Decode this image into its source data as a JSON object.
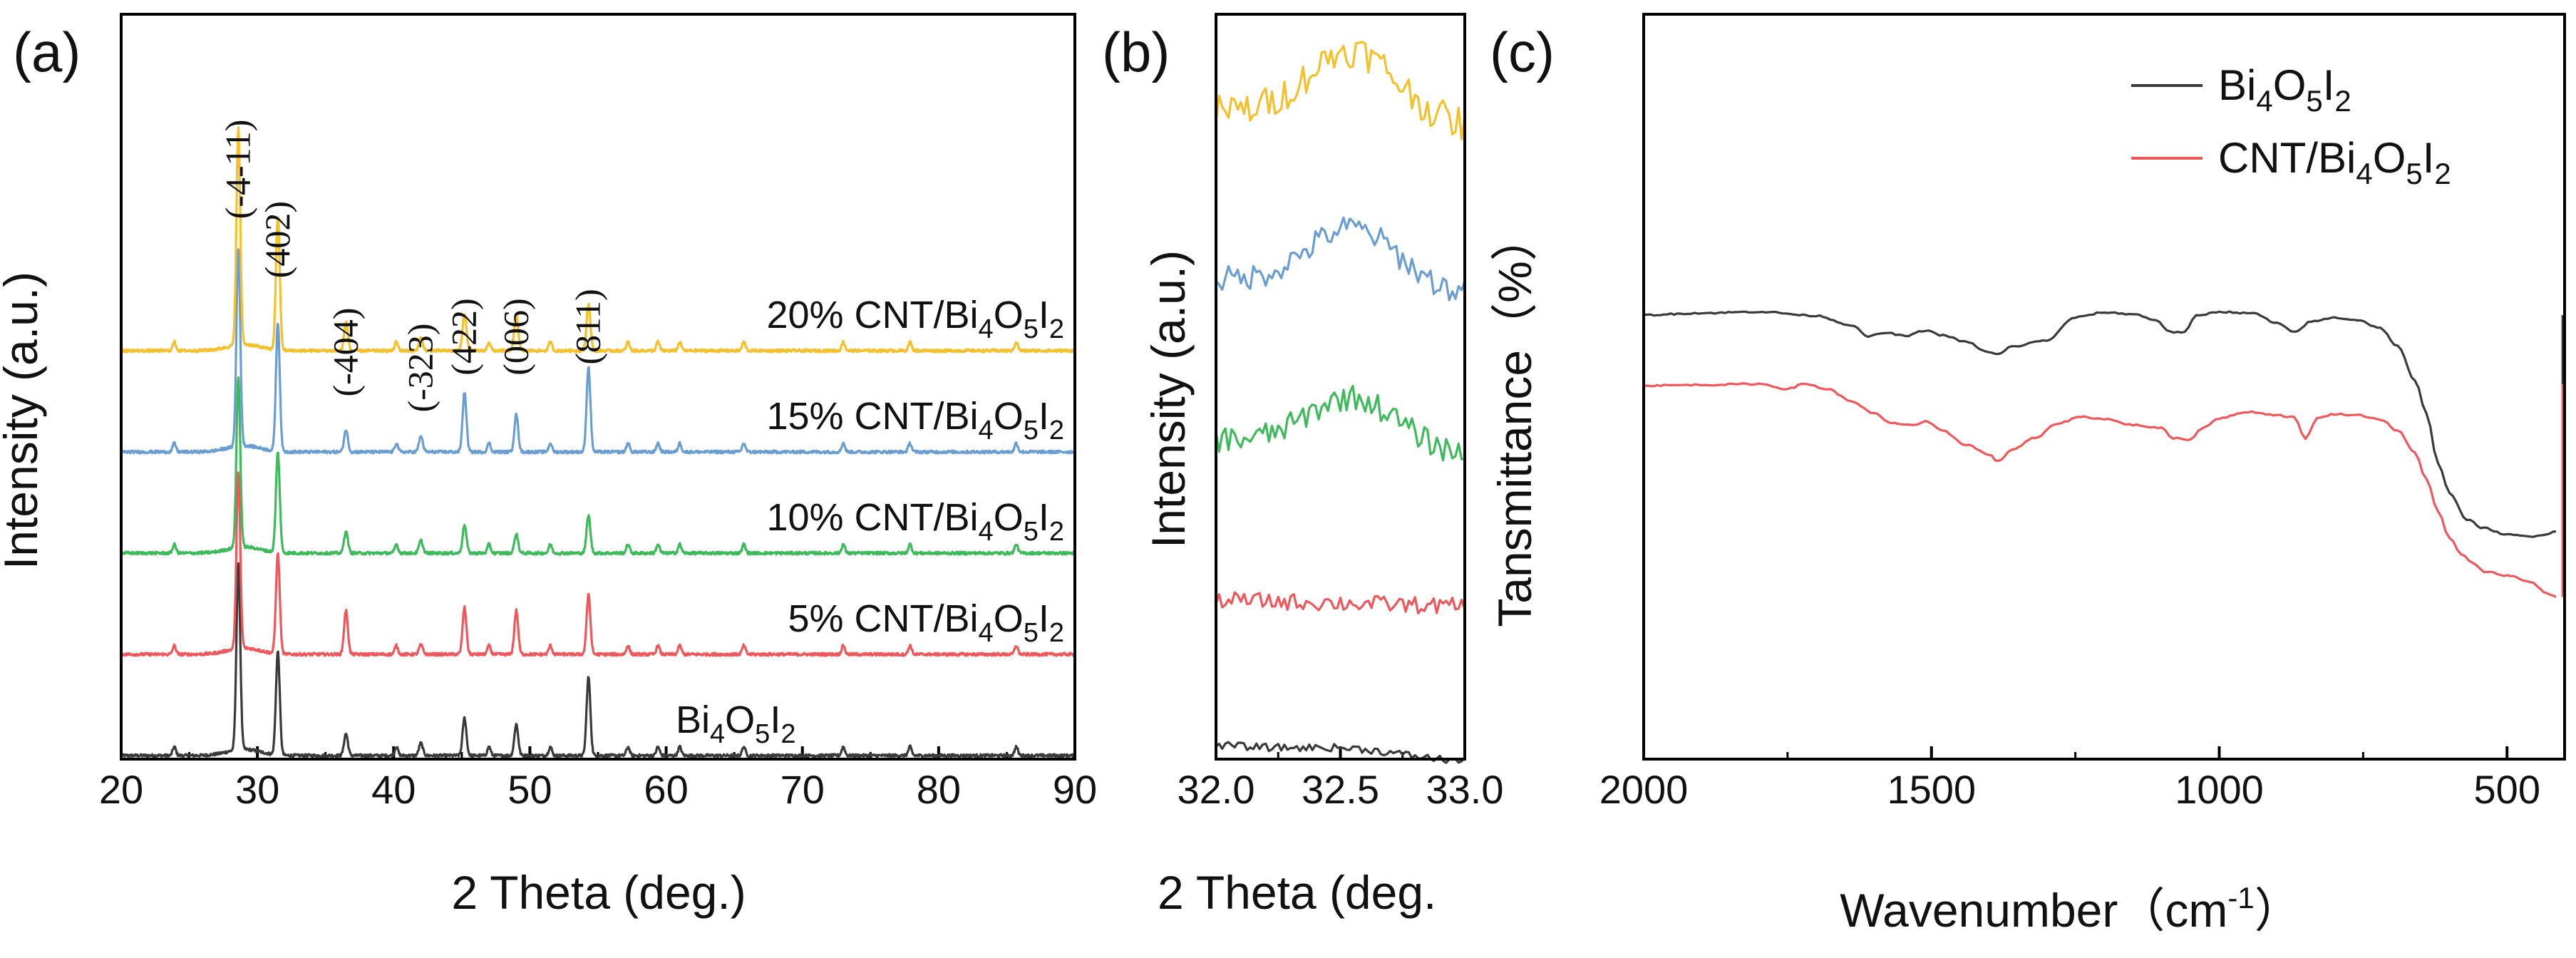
{
  "figure": {
    "colors": {
      "black": "#3a3a3a",
      "red": "#f0575b",
      "green": "#3dba5a",
      "blue": "#6a9ed3",
      "yellow": "#f6c02a",
      "axis": "#000000"
    }
  },
  "chart_data": [
    {
      "panel": "(a)",
      "type": "line",
      "xlabel": "2 Theta (deg.)",
      "ylabel": "Intensity (a.u.)",
      "xlim": [
        20,
        90
      ],
      "xticks": [
        "20",
        "30",
        "40",
        "50",
        "60",
        "70",
        "80",
        "90"
      ],
      "peak_positions": [
        28.6,
        31.5,
        36.5,
        42.0,
        45.2,
        49.0,
        54.3
      ],
      "hkl_labels": [
        "(-4-11)",
        "(402)",
        "(-404)",
        "(-323)",
        "(422)",
        "(006)",
        "(811)"
      ],
      "minor_peaks": [
        23.9,
        40.2,
        47.0,
        51.5,
        57.2,
        59.4,
        61.0,
        65.7,
        73.0,
        77.9,
        85.7
      ],
      "series": [
        {
          "name": "Bi4O5I2",
          "label_main": "Bi",
          "label_subs": [
            "4",
            "5",
            "2"
          ],
          "color": "black",
          "baseline": 0.0,
          "peak_heights": [
            5.9,
            3.3,
            0.7,
            0.4,
            1.2,
            1.0,
            2.5
          ]
        },
        {
          "name": "5% CNT/Bi4O5I2",
          "label_main": "5% CNT/Bi",
          "label_subs": [
            "4",
            "5",
            "2"
          ],
          "color": "red",
          "baseline": 1.0,
          "peak_heights": [
            5.6,
            3.2,
            1.4,
            0.3,
            1.5,
            1.4,
            1.9
          ]
        },
        {
          "name": "10% CNT/Bi4O5I2",
          "label_main": "10% CNT/Bi",
          "label_subs": [
            "4",
            "5",
            "2"
          ],
          "color": "green",
          "baseline": 2.0,
          "peak_heights": [
            5.4,
            3.2,
            0.7,
            0.4,
            0.9,
            0.6,
            1.2
          ]
        },
        {
          "name": "15% CNT/Bi4O5I2",
          "label_main": "15% CNT/Bi",
          "label_subs": [
            "4",
            "5",
            "2"
          ],
          "color": "blue",
          "baseline": 3.0,
          "peak_heights": [
            6.3,
            4.1,
            0.7,
            0.5,
            1.9,
            1.2,
            2.7
          ]
        },
        {
          "name": "20% CNT/Bi4O5I2",
          "label_main": "20% CNT/Bi",
          "label_subs": [
            "4",
            "5",
            "2"
          ],
          "color": "yellow",
          "baseline": 4.0,
          "peak_heights": [
            6.9,
            4.3,
            0.9,
            0.4,
            1.2,
            1.2,
            1.5
          ]
        }
      ]
    },
    {
      "panel": "(b)",
      "type": "line",
      "xlabel": "2 Theta (deg.",
      "ylabel": "Intensity (a.u.)",
      "xlim": [
        32.0,
        33.0
      ],
      "xticks": [
        "32.0",
        "32.5",
        "33.0"
      ],
      "series": [
        {
          "name": "Bi4O5I2",
          "color": "black",
          "baseline": 0.0,
          "hump": 0.06,
          "noise": 0.04
        },
        {
          "name": "5% CNT/Bi4O5I2",
          "color": "red",
          "baseline": 0.95,
          "hump": 0.0,
          "noise": 0.09
        },
        {
          "name": "10% CNT/Bi4O5I2",
          "color": "green",
          "baseline": 2.0,
          "hump": 0.55,
          "noise": 0.14
        },
        {
          "name": "15% CNT/Bi4O5I2",
          "color": "blue",
          "baseline": 3.05,
          "hump": 0.65,
          "noise": 0.14
        },
        {
          "name": "20% CNT/Bi4O5I2",
          "color": "yellow",
          "baseline": 4.15,
          "hump": 0.75,
          "noise": 0.18
        }
      ]
    },
    {
      "panel": "(c)",
      "type": "line",
      "xlabel_main": "Wavenumber（cm",
      "xlabel_sup": "-1",
      "xlabel_end": "）",
      "ylabel": "Tansmittance（%）",
      "xlim": [
        2000,
        400
      ],
      "xticks": [
        "2000",
        "1500",
        "1000",
        "500"
      ],
      "legend": [
        {
          "main": "Bi",
          "subs": [
            "4",
            "5",
            "2"
          ],
          "prefix": "",
          "color": "black"
        },
        {
          "main": "Bi",
          "subs": [
            "4",
            "5",
            "2"
          ],
          "prefix": "CNT/",
          "color": "red"
        }
      ],
      "series": [
        {
          "name": "Bi4O5I2",
          "color": "black",
          "points": [
            [
              2000,
              80
            ],
            [
              1900,
              80.6
            ],
            [
              1800,
              81
            ],
            [
              1700,
              79.8
            ],
            [
              1640,
              77
            ],
            [
              1610,
              73.5
            ],
            [
              1580,
              74.6
            ],
            [
              1545,
              73.6
            ],
            [
              1510,
              75.3
            ],
            [
              1480,
              73.8
            ],
            [
              1440,
              71.8
            ],
            [
              1400,
              68.6
            ],
            [
              1385,
              68
            ],
            [
              1360,
              70.4
            ],
            [
              1300,
              72.3
            ],
            [
              1250,
              79.3
            ],
            [
              1200,
              80.8
            ],
            [
              1150,
              80.3
            ],
            [
              1110,
              78.5
            ],
            [
              1085,
              74.8
            ],
            [
              1060,
              74.8
            ],
            [
              1040,
              79.8
            ],
            [
              1000,
              81
            ],
            [
              940,
              80.5
            ],
            [
              900,
              77.5
            ],
            [
              870,
              74.8
            ],
            [
              840,
              78
            ],
            [
              800,
              79.2
            ],
            [
              760,
              78.5
            ],
            [
              720,
              76
            ],
            [
              690,
              70.5
            ],
            [
              660,
              60
            ],
            [
              640,
              50
            ],
            [
              620,
              35
            ],
            [
              600,
              25.8
            ],
            [
              570,
              17.6
            ],
            [
              540,
              15
            ],
            [
              500,
              13
            ],
            [
              460,
              12.5
            ],
            [
              430,
              13.2
            ],
            [
              415,
              14
            ]
          ]
        },
        {
          "name": "CNT/Bi4O5I2",
          "color": "red",
          "points": [
            [
              2000,
              58.5
            ],
            [
              1900,
              58.7
            ],
            [
              1800,
              59
            ],
            [
              1750,
              57.5
            ],
            [
              1720,
              59
            ],
            [
              1680,
              57.4
            ],
            [
              1640,
              53.8
            ],
            [
              1600,
              50
            ],
            [
              1570,
              47
            ],
            [
              1530,
              46.5
            ],
            [
              1510,
              47.5
            ],
            [
              1480,
              44.6
            ],
            [
              1440,
              40.5
            ],
            [
              1400,
              37.5
            ],
            [
              1385,
              35.3
            ],
            [
              1360,
              39
            ],
            [
              1320,
              42.5
            ],
            [
              1280,
              47
            ],
            [
              1240,
              49
            ],
            [
              1200,
              48.3
            ],
            [
              1150,
              46.5
            ],
            [
              1100,
              45.5
            ],
            [
              1080,
              42.5
            ],
            [
              1050,
              42
            ],
            [
              1030,
              45.6
            ],
            [
              1000,
              48.5
            ],
            [
              950,
              50.5
            ],
            [
              900,
              49.5
            ],
            [
              870,
              48.8
            ],
            [
              850,
              42.4
            ],
            [
              830,
              48.5
            ],
            [
              800,
              49.8
            ],
            [
              760,
              49.5
            ],
            [
              720,
              48.2
            ],
            [
              690,
              44.7
            ],
            [
              660,
              38
            ],
            [
              640,
              30
            ],
            [
              620,
              20
            ],
            [
              600,
              12
            ],
            [
              580,
              7.2
            ],
            [
              560,
              4.3
            ],
            [
              540,
              1.8
            ],
            [
              500,
              0.6
            ],
            [
              460,
              -1.3
            ],
            [
              430,
              -4.9
            ],
            [
              415,
              -6
            ]
          ]
        }
      ]
    }
  ]
}
